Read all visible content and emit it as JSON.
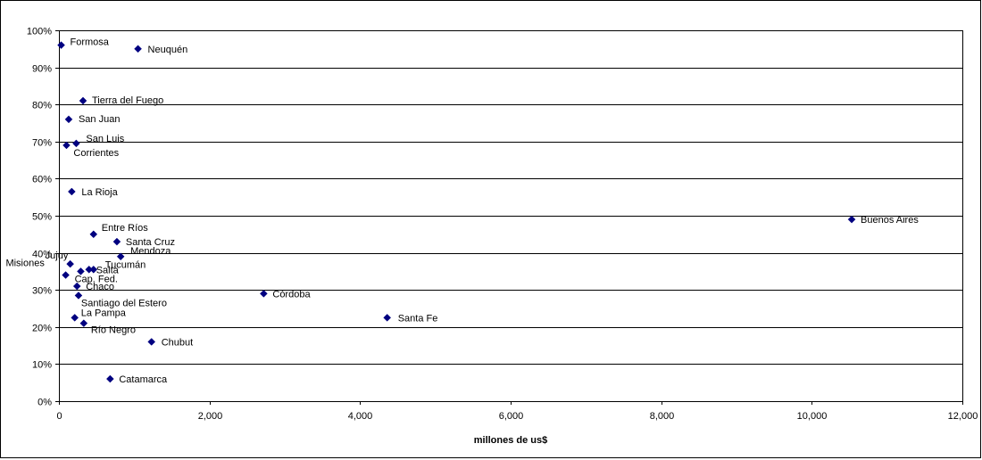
{
  "chart_data": {
    "type": "scatter",
    "xlabel": "millones de us$",
    "ylabel": "",
    "xlim": [
      0,
      12000
    ],
    "ylim": [
      0,
      1.0
    ],
    "x_ticks": [
      0,
      2000,
      4000,
      6000,
      8000,
      10000,
      12000
    ],
    "x_tick_labels": [
      "0",
      "2,000",
      "4,000",
      "6,000",
      "8,000",
      "10,000",
      "12,000"
    ],
    "y_ticks": [
      0,
      0.1,
      0.2,
      0.3,
      0.4,
      0.5,
      0.6,
      0.7,
      0.8,
      0.9,
      1.0
    ],
    "y_tick_labels": [
      "0%",
      "10%",
      "20%",
      "30%",
      "40%",
      "50%",
      "60%",
      "70%",
      "80%",
      "90%",
      "100%"
    ],
    "grid": "horizontal",
    "marker_color": "#000080",
    "legend": false,
    "points": [
      {
        "label": "Formosa",
        "x": 30,
        "y": 0.96
      },
      {
        "label": "Neuquén",
        "x": 1050,
        "y": 0.95
      },
      {
        "label": "Tierra del Fuego",
        "x": 320,
        "y": 0.81
      },
      {
        "label": "San Juan",
        "x": 130,
        "y": 0.76
      },
      {
        "label": "San Luis",
        "x": 230,
        "y": 0.695
      },
      {
        "label": "Corrientes",
        "x": 100,
        "y": 0.69
      },
      {
        "label": "La Rioja",
        "x": 170,
        "y": 0.565
      },
      {
        "label": "Buenos Aires",
        "x": 10530,
        "y": 0.49
      },
      {
        "label": "Entre Ríos",
        "x": 460,
        "y": 0.45
      },
      {
        "label": "Santa Cruz",
        "x": 770,
        "y": 0.43
      },
      {
        "label": "Mendoza",
        "x": 820,
        "y": 0.39
      },
      {
        "label": "Jujuy",
        "x": 150,
        "y": 0.37
      },
      {
        "label": "Tucumán",
        "x": 460,
        "y": 0.355
      },
      {
        "label": "Salta",
        "x": 400,
        "y": 0.355
      },
      {
        "label": "Misiones",
        "x": 290,
        "y": 0.35
      },
      {
        "label": "Cap. Fed.",
        "x": 90,
        "y": 0.34
      },
      {
        "label": "Chaco",
        "x": 240,
        "y": 0.31
      },
      {
        "label": "Córdoba",
        "x": 2720,
        "y": 0.29
      },
      {
        "label": "Santiago del Estero",
        "x": 260,
        "y": 0.285
      },
      {
        "label": "Santa Fe",
        "x": 4360,
        "y": 0.225
      },
      {
        "label": "La Pampa",
        "x": 210,
        "y": 0.225
      },
      {
        "label": "Río Negro",
        "x": 330,
        "y": 0.21
      },
      {
        "label": "Chubut",
        "x": 1230,
        "y": 0.16
      },
      {
        "label": "Catamarca",
        "x": 680,
        "y": 0.06
      }
    ]
  }
}
